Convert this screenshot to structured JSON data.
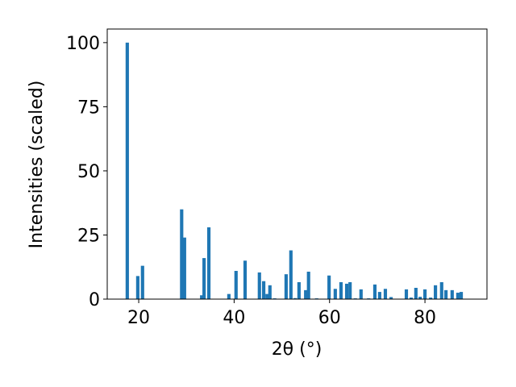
{
  "chart_data": {
    "type": "bar",
    "x_label": "2θ (°)",
    "y_label": "Intensities (scaled)",
    "x": [
      17.6,
      19.8,
      20.8,
      29.0,
      29.6,
      33.2,
      33.7,
      34.7,
      38.9,
      40.4,
      42.3,
      45.3,
      46.2,
      46.9,
      47.5,
      48.5,
      50.9,
      51.9,
      52.8,
      53.6,
      55.0,
      55.6,
      57.3,
      59.9,
      61.2,
      62.4,
      63.6,
      64.3,
      65.4,
      66.6,
      68.2,
      69.5,
      70.5,
      71.7,
      72.9,
      76.1,
      77.1,
      78.1,
      79.0,
      80.0,
      81.2,
      82.2,
      83.5,
      84.4,
      85.7,
      86.9,
      87.6
    ],
    "values": [
      100,
      9,
      13,
      35,
      24,
      1.5,
      16,
      28,
      2,
      11,
      15,
      10.4,
      7,
      2,
      5.4,
      0.3,
      9.7,
      19,
      0.4,
      6.6,
      3.5,
      10.7,
      0.3,
      9.2,
      4,
      6.6,
      6,
      6.6,
      0.3,
      3.8,
      0.3,
      5.7,
      2.8,
      4,
      0.8,
      3.8,
      0.6,
      4.4,
      0.9,
      3.8,
      0.6,
      5.4,
      6.6,
      3.5,
      3.5,
      2.5,
      2.8
    ],
    "color": "#1f77b4",
    "xlim": [
      13.4,
      93.0
    ],
    "ylim": [
      0,
      105.3
    ],
    "xticks": [
      20,
      40,
      60,
      80
    ],
    "yticks": [
      0,
      25,
      50,
      75,
      100
    ]
  }
}
